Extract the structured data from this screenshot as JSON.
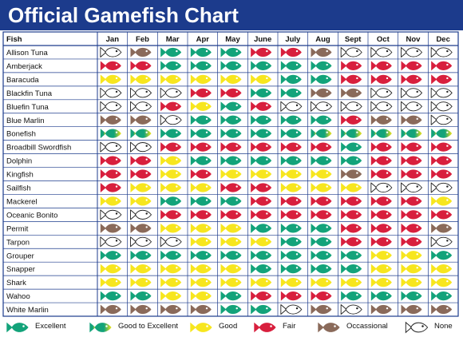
{
  "title": "Official Gamefish Chart",
  "chart_data": {
    "type": "table",
    "title": "Official Gamefish Chart",
    "row_header": "Fish",
    "months": [
      "Jan",
      "Feb",
      "Mar",
      "Apr",
      "May",
      "June",
      "July",
      "Aug",
      "Sept",
      "Oct",
      "Nov",
      "Dec"
    ],
    "rating_key": {
      "E": "Excellent",
      "G": "Good to Excellent",
      "Y": "Good",
      "F": "Fair",
      "O": "Occassional",
      "N": "None"
    },
    "rows": [
      {
        "fish": "Allison Tuna",
        "ratings": [
          "N",
          "O",
          "E",
          "E",
          "E",
          "F",
          "F",
          "O",
          "N",
          "N",
          "N",
          "N"
        ]
      },
      {
        "fish": "Amberjack",
        "ratings": [
          "F",
          "F",
          "E",
          "E",
          "E",
          "E",
          "E",
          "E",
          "F",
          "F",
          "F",
          "F"
        ]
      },
      {
        "fish": "Baracuda",
        "ratings": [
          "Y",
          "Y",
          "Y",
          "Y",
          "Y",
          "Y",
          "E",
          "E",
          "F",
          "F",
          "F",
          "F"
        ]
      },
      {
        "fish": "Blackfin Tuna",
        "ratings": [
          "N",
          "N",
          "N",
          "F",
          "F",
          "E",
          "E",
          "O",
          "O",
          "N",
          "N",
          "N"
        ]
      },
      {
        "fish": "Bluefin Tuna",
        "ratings": [
          "N",
          "N",
          "F",
          "Y",
          "E",
          "F",
          "N",
          "N",
          "N",
          "N",
          "N",
          "N"
        ]
      },
      {
        "fish": "Blue Marlin",
        "ratings": [
          "O",
          "O",
          "N",
          "E",
          "E",
          "E",
          "E",
          "E",
          "F",
          "O",
          "O",
          "N"
        ]
      },
      {
        "fish": "Bonefish",
        "ratings": [
          "G",
          "G",
          "E",
          "E",
          "E",
          "E",
          "E",
          "G",
          "G",
          "G",
          "G",
          "G"
        ]
      },
      {
        "fish": "Broadbill Swordfish",
        "ratings": [
          "N",
          "N",
          "F",
          "F",
          "F",
          "F",
          "F",
          "F",
          "E",
          "F",
          "F",
          "F"
        ]
      },
      {
        "fish": "Dolphin",
        "ratings": [
          "F",
          "F",
          "Y",
          "E",
          "E",
          "E",
          "E",
          "E",
          "E",
          "F",
          "F",
          "F"
        ]
      },
      {
        "fish": "Kingfish",
        "ratings": [
          "F",
          "F",
          "Y",
          "F",
          "Y",
          "Y",
          "Y",
          "Y",
          "O",
          "F",
          "F",
          "F"
        ]
      },
      {
        "fish": "Sailfish",
        "ratings": [
          "F",
          "Y",
          "Y",
          "Y",
          "F",
          "F",
          "Y",
          "Y",
          "Y",
          "N",
          "N",
          "N"
        ]
      },
      {
        "fish": "Mackerel",
        "ratings": [
          "Y",
          "Y",
          "E",
          "E",
          "E",
          "F",
          "F",
          "F",
          "F",
          "F",
          "F",
          "Y"
        ]
      },
      {
        "fish": "Oceanic Bonito",
        "ratings": [
          "N",
          "N",
          "F",
          "F",
          "F",
          "F",
          "F",
          "F",
          "F",
          "F",
          "F",
          "F"
        ]
      },
      {
        "fish": "Permit",
        "ratings": [
          "O",
          "O",
          "Y",
          "Y",
          "Y",
          "E",
          "E",
          "E",
          "F",
          "F",
          "F",
          "O"
        ]
      },
      {
        "fish": "Tarpon",
        "ratings": [
          "N",
          "N",
          "N",
          "Y",
          "Y",
          "Y",
          "E",
          "E",
          "F",
          "F",
          "F",
          "N"
        ]
      },
      {
        "fish": "Grouper",
        "ratings": [
          "E",
          "E",
          "E",
          "E",
          "E",
          "E",
          "E",
          "E",
          "E",
          "Y",
          "Y",
          "E"
        ]
      },
      {
        "fish": "Snapper",
        "ratings": [
          "Y",
          "Y",
          "Y",
          "Y",
          "Y",
          "E",
          "E",
          "E",
          "E",
          "Y",
          "Y",
          "Y"
        ]
      },
      {
        "fish": "Shark",
        "ratings": [
          "Y",
          "Y",
          "Y",
          "Y",
          "Y",
          "Y",
          "Y",
          "Y",
          "Y",
          "Y",
          "Y",
          "Y"
        ]
      },
      {
        "fish": "Wahoo",
        "ratings": [
          "E",
          "E",
          "Y",
          "Y",
          "E",
          "F",
          "F",
          "F",
          "E",
          "E",
          "E",
          "E"
        ]
      },
      {
        "fish": "White Marlin",
        "ratings": [
          "O",
          "O",
          "O",
          "O",
          "E",
          "E",
          "N",
          "O",
          "N",
          "O",
          "O",
          "O"
        ]
      }
    ]
  },
  "colors": {
    "title_bar": "#1c3b8c",
    "title_text": "#ffffff",
    "grid": "#1c3b8c",
    "E": "#13a37a",
    "G_head": "#f3e41a",
    "G_tail": "#13a37a",
    "Y": "#f7e61e",
    "F": "#d81f3d",
    "O": "#8a6a5a",
    "N": "#ffffff"
  },
  "legend": [
    {
      "key": "E",
      "label": "Excellent"
    },
    {
      "key": "G",
      "label": "Good to Excellent"
    },
    {
      "key": "Y",
      "label": "Good"
    },
    {
      "key": "F",
      "label": "Fair"
    },
    {
      "key": "O",
      "label": "Occassional"
    },
    {
      "key": "N",
      "label": "None"
    }
  ]
}
